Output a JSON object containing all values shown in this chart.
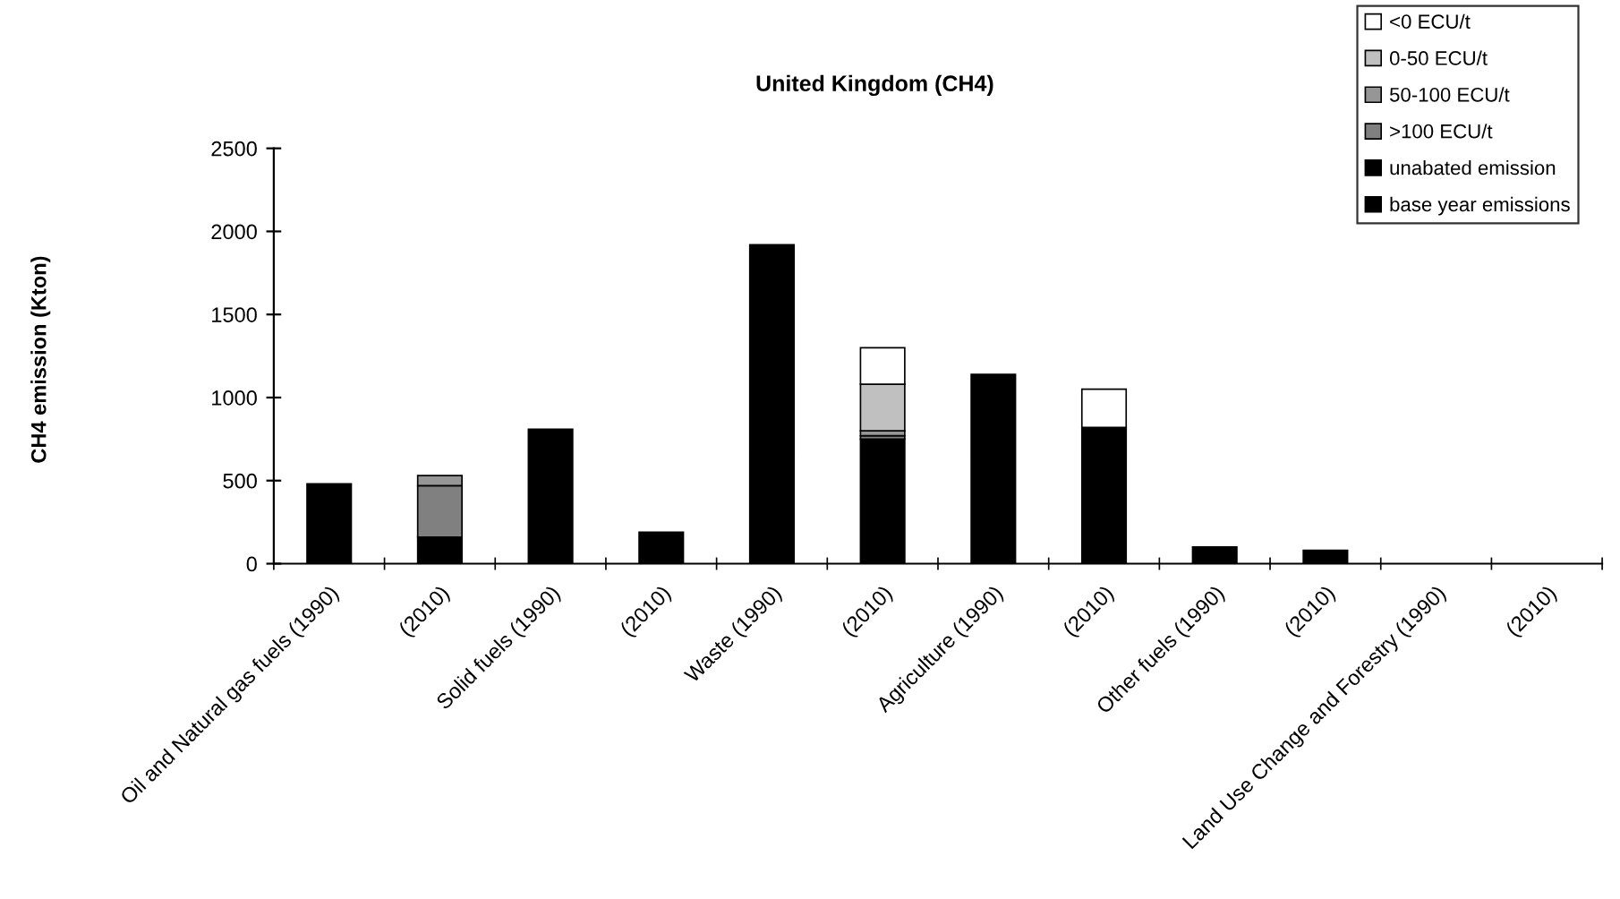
{
  "chart_data": {
    "type": "bar",
    "stacked": true,
    "title": "United Kingdom (CH4)",
    "ylabel": "CH4 emission (Kton)",
    "categories": [
      "Oil and Natural gas fuels (1990)",
      "(2010)",
      "Solid fuels (1990)",
      "(2010)",
      "Waste (1990)",
      "(2010)",
      "Agriculture (1990)",
      "(2010)",
      "Other fuels (1990)",
      "(2010)",
      "Land Use Change and Forestry (1990)",
      "(2010)"
    ],
    "series": [
      {
        "name": "base year emissions",
        "color": "#000000",
        "values": [
          480,
          null,
          810,
          null,
          1920,
          null,
          1140,
          null,
          100,
          null,
          null,
          null
        ]
      },
      {
        "name": "unabated emission",
        "color": "#000000",
        "values": [
          null,
          160,
          null,
          190,
          null,
          750,
          null,
          820,
          null,
          80,
          null,
          null
        ]
      },
      {
        "name": ">100 ECU/t",
        "color": "#808080",
        "values": [
          null,
          310,
          null,
          null,
          null,
          20,
          null,
          null,
          null,
          null,
          null,
          null
        ]
      },
      {
        "name": "50-100 ECU/t",
        "color": "#969696",
        "values": [
          null,
          60,
          null,
          null,
          null,
          30,
          null,
          null,
          null,
          null,
          null,
          null
        ]
      },
      {
        "name": "0-50 ECU/t",
        "color": "#c0c0c0",
        "values": [
          null,
          null,
          null,
          null,
          null,
          280,
          null,
          null,
          null,
          null,
          null,
          null
        ]
      },
      {
        "name": "<0 ECU/t",
        "color": "#ffffff",
        "values": [
          null,
          null,
          null,
          null,
          null,
          220,
          null,
          230,
          null,
          null,
          null,
          null
        ]
      }
    ],
    "ylim": [
      0,
      2500
    ],
    "yticks": [
      0,
      500,
      1000,
      1500,
      2000,
      2500
    ],
    "grid": false,
    "legend": "top right"
  }
}
